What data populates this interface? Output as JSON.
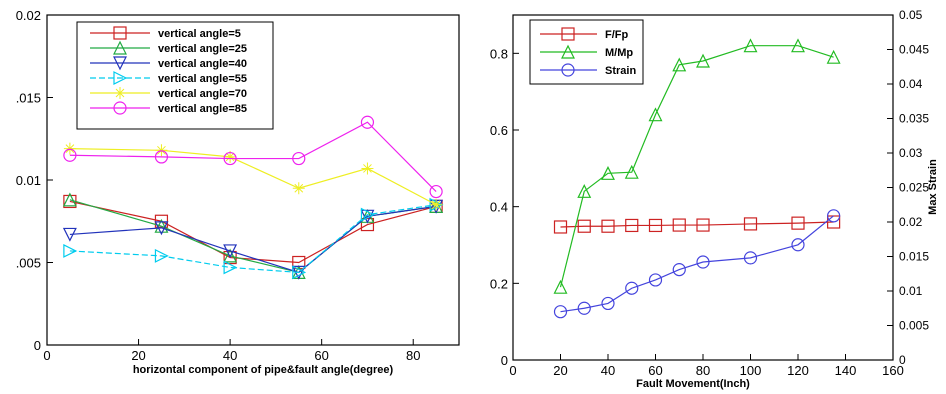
{
  "chart_data": [
    {
      "type": "line",
      "title": "",
      "xlabel": "horizontal component of pipe&fault angle(degree)",
      "ylabel": "",
      "xlim": [
        0,
        90
      ],
      "ylim": [
        0,
        0.02
      ],
      "x_ticks": [
        {
          "value": 0,
          "label": "0"
        },
        {
          "value": 20,
          "label": "20"
        },
        {
          "value": 40,
          "label": "40"
        },
        {
          "value": 60,
          "label": "60"
        },
        {
          "value": 80,
          "label": "80"
        }
      ],
      "y_ticks": [
        {
          "value": 0,
          "label": "0"
        },
        {
          "value": 0.005,
          "label": ".005"
        },
        {
          "value": 0.01,
          "label": "0.01"
        },
        {
          "value": 0.015,
          "label": ".015"
        },
        {
          "value": 0.02,
          "label": "0.02"
        }
      ],
      "grid": false,
      "legend_position": "top-left",
      "x": [
        5,
        25,
        40,
        55,
        70,
        85
      ],
      "series": [
        {
          "name": "vertical angle=5",
          "color": "#cc2222",
          "marker": "square",
          "values": [
            0.0087,
            0.0075,
            0.0053,
            0.005,
            0.0073,
            0.0084
          ]
        },
        {
          "name": "vertical angle=25",
          "color": "#22aa44",
          "marker": "triangle-up",
          "values": [
            0.0088,
            0.0072,
            0.0054,
            0.0044,
            0.0078,
            0.0084
          ]
        },
        {
          "name": "vertical angle=40",
          "color": "#2233bb",
          "marker": "triangle-down",
          "values": [
            0.0067,
            0.0071,
            0.0057,
            0.0044,
            0.0078,
            0.0084
          ]
        },
        {
          "name": "vertical angle=55",
          "color": "#00ccee",
          "marker": "triangle-right",
          "dashed": true,
          "values": [
            0.0057,
            0.0054,
            0.0047,
            0.0044,
            0.0079,
            0.0085
          ]
        },
        {
          "name": "vertical angle=70",
          "color": "#eeee22",
          "marker": "star",
          "values": [
            0.0119,
            0.0118,
            0.0114,
            0.0095,
            0.0107,
            0.0085
          ]
        },
        {
          "name": "vertical angle=85",
          "color": "#ee22ee",
          "marker": "circle",
          "values": [
            0.0115,
            0.0114,
            0.0113,
            0.0113,
            0.0135,
            0.0093
          ]
        }
      ]
    },
    {
      "type": "line",
      "title": "",
      "xlabel": "Fault Movement(Inch)",
      "ylabel": "",
      "y2label": "Max Strain",
      "xlim": [
        0,
        160
      ],
      "ylim": [
        0,
        0.9
      ],
      "y2lim": [
        0,
        0.05
      ],
      "x_ticks": [
        {
          "value": 0,
          "label": "0"
        },
        {
          "value": 20,
          "label": "20"
        },
        {
          "value": 40,
          "label": "40"
        },
        {
          "value": 60,
          "label": "60"
        },
        {
          "value": 80,
          "label": "80"
        },
        {
          "value": 100,
          "label": "100"
        },
        {
          "value": 120,
          "label": "120"
        },
        {
          "value": 140,
          "label": "140"
        },
        {
          "value": 160,
          "label": "160"
        }
      ],
      "y_ticks": [
        {
          "value": 0,
          "label": "0"
        },
        {
          "value": 0.2,
          "label": "0.2"
        },
        {
          "value": 0.4,
          "label": "0.4"
        },
        {
          "value": 0.6,
          "label": "0.6"
        },
        {
          "value": 0.8,
          "label": "0.8"
        }
      ],
      "y2_ticks": [
        {
          "value": 0,
          "label": "0"
        },
        {
          "value": 0.005,
          "label": "0.005"
        },
        {
          "value": 0.01,
          "label": "0.01"
        },
        {
          "value": 0.015,
          "label": "0.015"
        },
        {
          "value": 0.02,
          "label": "0.02"
        },
        {
          "value": 0.025,
          "label": "0.025"
        },
        {
          "value": 0.03,
          "label": "0.03"
        },
        {
          "value": 0.035,
          "label": "0.035"
        },
        {
          "value": 0.04,
          "label": "0.04"
        },
        {
          "value": 0.045,
          "label": "0.045"
        },
        {
          "value": 0.05,
          "label": "0.05"
        }
      ],
      "grid": false,
      "legend_position": "top-left",
      "series": [
        {
          "name": "F/Fp",
          "color": "#cc2222",
          "marker": "square",
          "axis": "left",
          "x": [
            20,
            30,
            40,
            50,
            60,
            70,
            80,
            100,
            120,
            135
          ],
          "values": [
            0.347,
            0.349,
            0.349,
            0.351,
            0.351,
            0.352,
            0.352,
            0.355,
            0.357,
            0.36
          ]
        },
        {
          "name": "M/Mp",
          "color": "#22bb22",
          "marker": "triangle-up",
          "axis": "left",
          "x": [
            20,
            30,
            40,
            50,
            60,
            70,
            80,
            100,
            120,
            135
          ],
          "values": [
            0.19,
            0.44,
            0.487,
            0.49,
            0.64,
            0.77,
            0.78,
            0.82,
            0.82,
            0.79
          ]
        },
        {
          "name": "Strain",
          "color": "#4444dd",
          "marker": "circle",
          "axis": "right",
          "x": [
            20,
            30,
            40,
            50,
            60,
            70,
            80,
            100,
            120,
            135
          ],
          "values": [
            0.007,
            0.0075,
            0.0082,
            0.0104,
            0.0116,
            0.0131,
            0.0142,
            0.0148,
            0.0167,
            0.0209
          ]
        }
      ]
    }
  ]
}
